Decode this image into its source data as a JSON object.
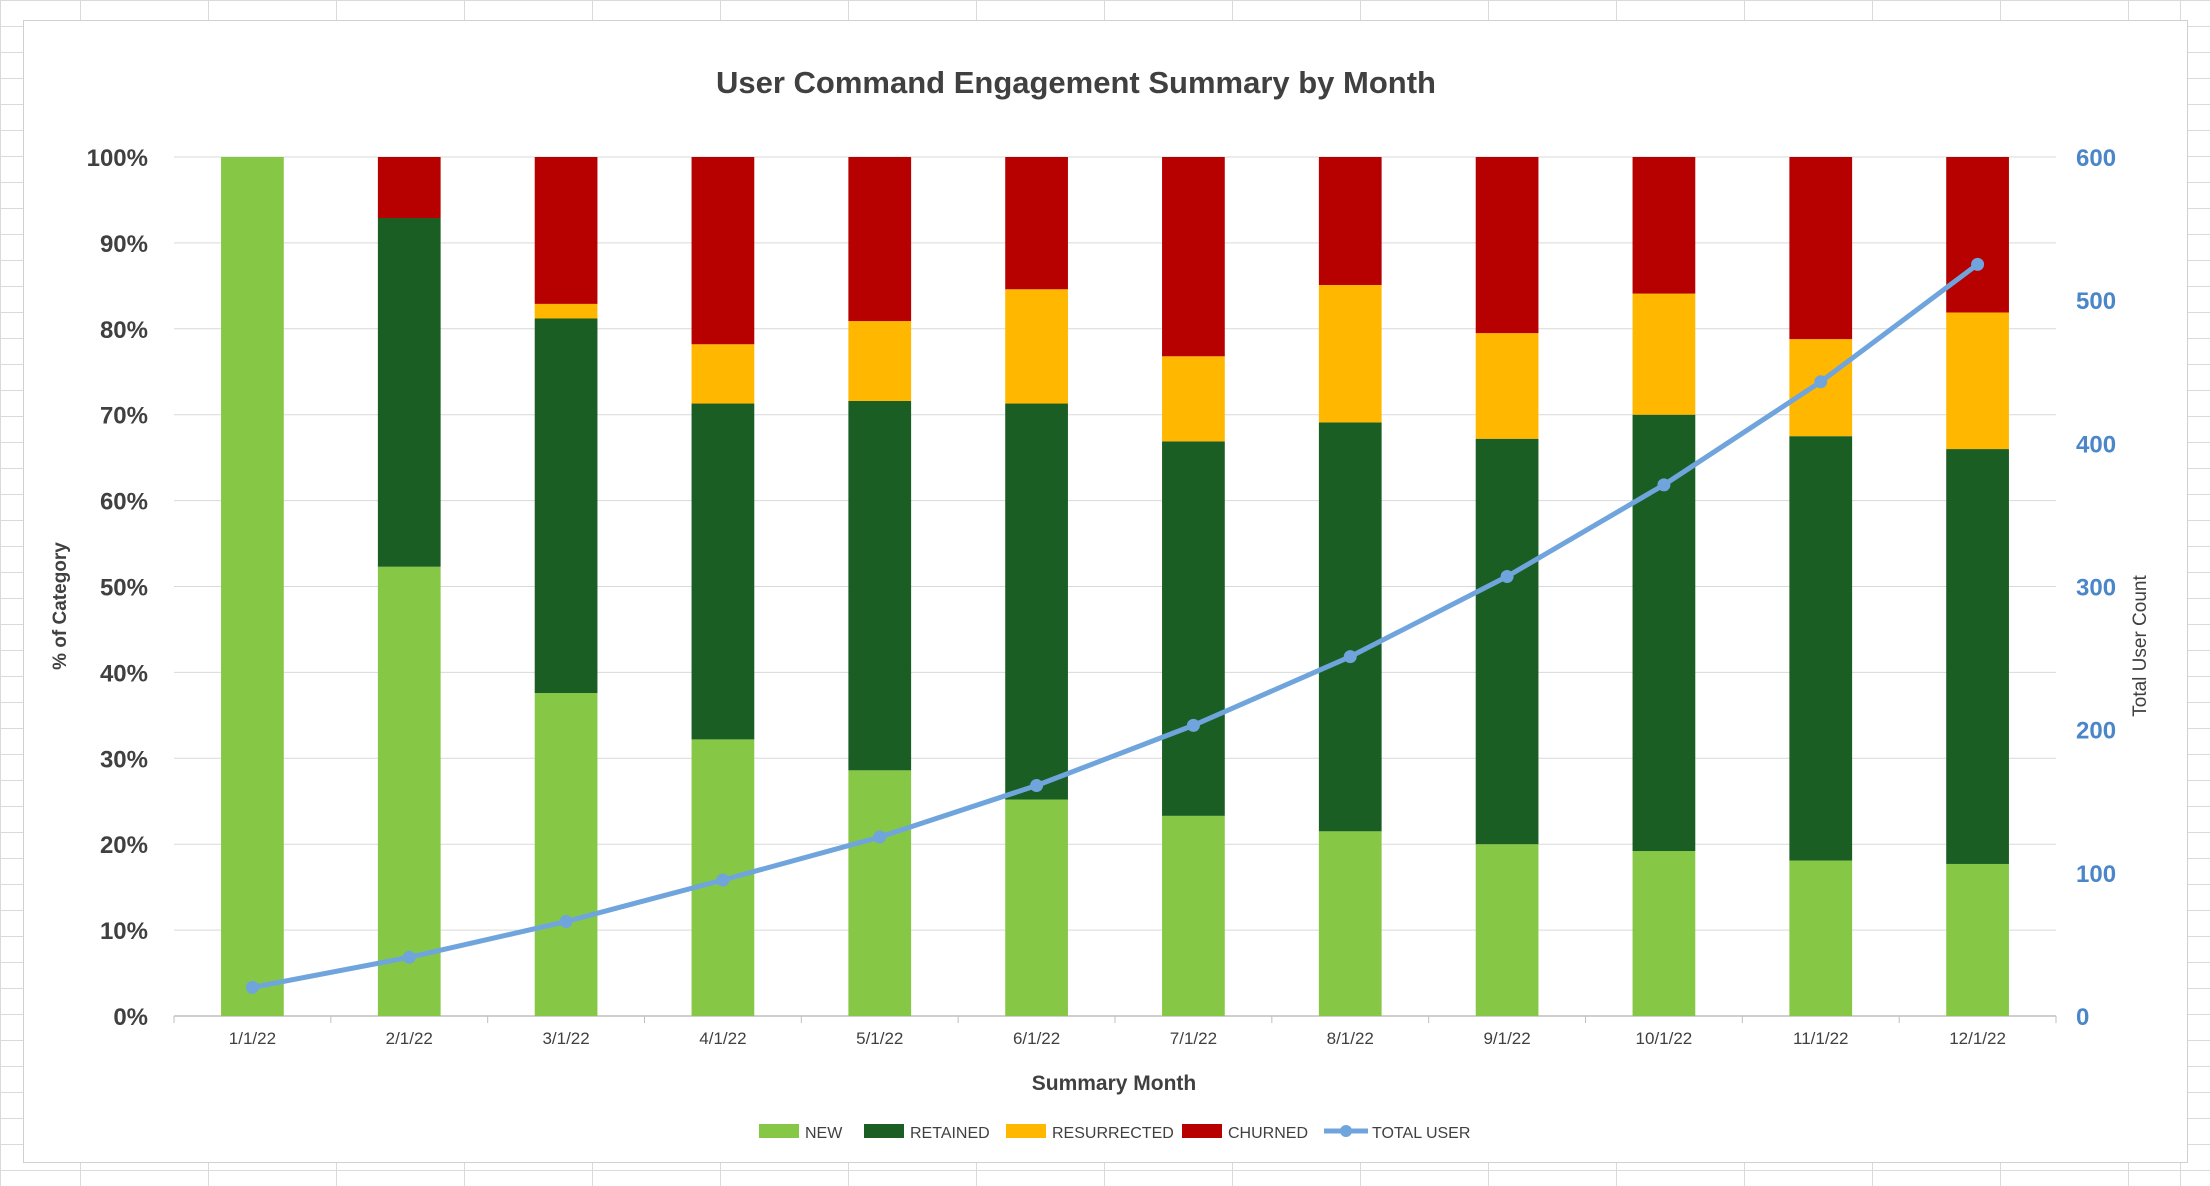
{
  "colors": {
    "new": "#86c846",
    "retained": "#1b5e24",
    "resurrected": "#ffb700",
    "churned": "#b70000",
    "total": "#6fa5dc",
    "right_axis_text": "#4a86c8",
    "text": "#404040"
  },
  "chart_data": {
    "type": "bar",
    "stacked": true,
    "percent_stacked": true,
    "title": "User Command Engagement Summary by Month",
    "xlabel": "Summary Month",
    "ylabel": "% of Category",
    "y2label": "Total User Count",
    "categories": [
      "1/1/22",
      "2/1/22",
      "3/1/22",
      "4/1/22",
      "5/1/22",
      "6/1/22",
      "7/1/22",
      "8/1/22",
      "9/1/22",
      "10/1/22",
      "11/1/22",
      "12/1/22"
    ],
    "ylim": [
      0,
      100
    ],
    "y_ticks": [
      "0%",
      "10%",
      "20%",
      "30%",
      "40%",
      "50%",
      "60%",
      "70%",
      "80%",
      "90%",
      "100%"
    ],
    "y2lim": [
      0,
      600
    ],
    "y2_ticks": [
      "0",
      "100",
      "200",
      "300",
      "400",
      "500",
      "600"
    ],
    "series": [
      {
        "name": "NEW",
        "values": [
          100,
          52.3,
          37.6,
          32.2,
          28.6,
          25.2,
          23.3,
          21.5,
          20.0,
          19.2,
          18.1,
          17.7
        ]
      },
      {
        "name": "RETAINED",
        "values": [
          0,
          40.6,
          43.6,
          39.1,
          43.0,
          46.1,
          43.6,
          47.6,
          47.2,
          50.8,
          49.4,
          48.3
        ]
      },
      {
        "name": "RESURRECTED",
        "values": [
          0,
          0,
          1.7,
          6.9,
          9.3,
          13.3,
          9.9,
          16.0,
          12.3,
          14.1,
          11.3,
          15.9
        ]
      },
      {
        "name": "CHURNED",
        "values": [
          0,
          7.1,
          17.1,
          21.8,
          19.1,
          15.4,
          23.2,
          14.9,
          20.5,
          15.9,
          21.2,
          18.1
        ]
      }
    ],
    "line_series": {
      "name": "TOTAL USER",
      "axis": "right",
      "values": [
        20,
        41,
        66,
        95,
        125,
        161,
        203,
        251,
        307,
        371,
        443,
        525
      ]
    },
    "legend": [
      "NEW",
      "RETAINED",
      "RESURRECTED",
      "CHURNED",
      "TOTAL USER"
    ],
    "legend_position": "bottom",
    "grid": true
  }
}
